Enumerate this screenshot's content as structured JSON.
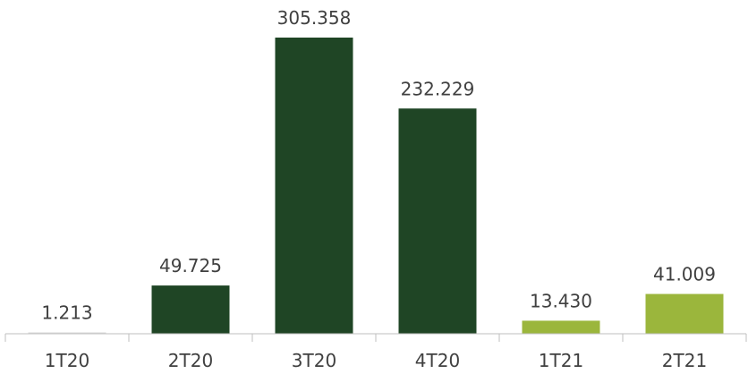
{
  "chart_data": {
    "type": "bar",
    "title": "",
    "xlabel": "",
    "ylabel": "",
    "categories": [
      "1T20",
      "2T20",
      "3T20",
      "4T20",
      "1T21",
      "2T21"
    ],
    "values": [
      1213,
      49725,
      305358,
      232229,
      13430,
      41009
    ],
    "value_labels": [
      "1.213",
      "49.725",
      "305.358",
      "232.229",
      "13.430",
      "41.009"
    ],
    "bar_colors": [
      "#d9d9d9",
      "#1f4525",
      "#1f4525",
      "#1f4525",
      "#9bb63c",
      "#9bb63c"
    ],
    "ylim": [
      0,
      305358
    ],
    "grid": false,
    "legend": "none"
  },
  "colors": {
    "axis": "#bfbfbf",
    "text": "#404040"
  }
}
